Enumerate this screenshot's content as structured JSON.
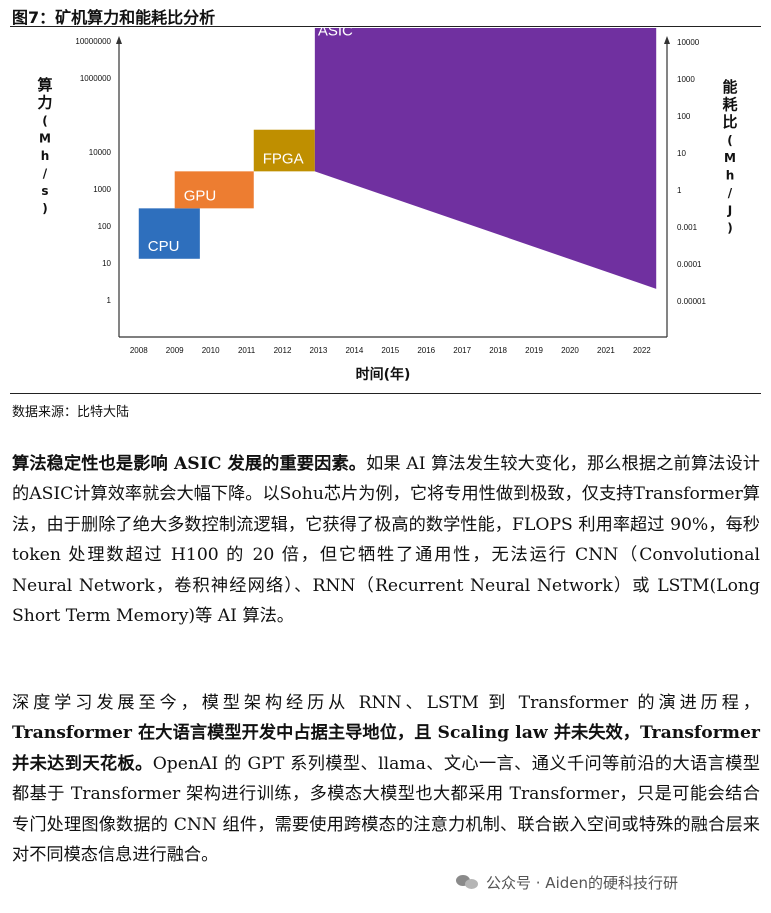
{
  "figure": {
    "title": "图7：矿机算力和能耗比分析",
    "source": "数据来源：比特大陆"
  },
  "chart_data": {
    "type": "area",
    "ylabel_left": "算力(Mh/s)",
    "ylabel_right": "能耗比(Mh/J)",
    "xlabel": "时间(年)",
    "x_ticks": [
      "2008",
      "2009",
      "2010",
      "2011",
      "2012",
      "2013",
      "2014",
      "2015",
      "2016",
      "2017",
      "2018",
      "2019",
      "2020",
      "2021",
      "2022"
    ],
    "y_left_ticks": [
      "1",
      "10",
      "100",
      "1000",
      "10000",
      "1000000",
      "10000000",
      "100000000"
    ],
    "y_left_tick_values": [
      1,
      10,
      100,
      1000,
      10000,
      1000000,
      10000000,
      100000000
    ],
    "y_right_ticks": [
      "0.00001",
      "0.0001",
      "0.001",
      "1",
      "10",
      "100",
      "1000",
      "10000"
    ],
    "y_right_tick_values": [
      1e-05,
      0.0001,
      0.001,
      1,
      10,
      100,
      1000,
      10000
    ],
    "series": [
      {
        "name": "CPU",
        "x_start": 2008,
        "x_end": 2009.7,
        "y_low": 13,
        "y_high": 300,
        "color": "#2e6fbd"
      },
      {
        "name": "GPU",
        "x_start": 2009,
        "x_end": 2011.2,
        "y_low": 300,
        "y_high": 3000,
        "color": "#ed7d31"
      },
      {
        "name": "FPGA",
        "x_start": 2011.2,
        "x_end": 2012.9,
        "y_low": 3000,
        "y_high": 40000,
        "color": "#bf8f00"
      },
      {
        "name": "ASIC",
        "x_start": 2012.9,
        "x_end": 2022.4,
        "y_low_start": 3000,
        "y_high_start": 40000000,
        "y_low_end": 2,
        "y_high_end": 200000000,
        "color": "#7030a0"
      }
    ]
  },
  "paragraphs": [
    [
      {
        "b": true,
        "t": "算法稳定性也是影响 ASIC 发展的重要因素。"
      },
      {
        "b": false,
        "t": "如果 AI 算法发生较大变化，那么根据之前算法设计的ASIC计算效率就会大幅下降。以Sohu芯片为例，它将专用性做到极致，仅支持Transformer算法，由于删除了绝大多数控制流逻辑，它获得了极高的数学性能，FLOPS 利用率超过 90%，每秒 token 处理数超过 H100 的 20 倍，但它牺牲了通用性，无法运行 CNN（Convolutional Neural Network，卷积神经网络）、RNN（Recurrent Neural Network）或 LSTM(Long Short Term Memory)等 AI 算法。"
      }
    ],
    [
      {
        "b": false,
        "t": "深度学习发展至今，模型架构经历从 RNN、LSTM 到 Transformer 的演进历程，"
      },
      {
        "b": true,
        "t": "Transformer 在大语言模型开发中占据主导地位，且 Scaling law 并未失效，Transformer 并未达到天花板。"
      },
      {
        "b": false,
        "t": "OpenAI 的 GPT 系列模型、llama、文心一言、通义千问等前沿的大语言模型都基于 Transformer 架构进行训练，多模态大模型也大都采用 Transformer，只是可能会结合专门处理图像数据的 CNN 组件，需要使用跨模态的注意力机制、联合嵌入空间或特殊的融合层来对不同模态信息进行融合。"
      }
    ]
  ],
  "watermark": {
    "text": "公众号 · Aiden的硬科技行研",
    "icon": "wechat-icon"
  }
}
